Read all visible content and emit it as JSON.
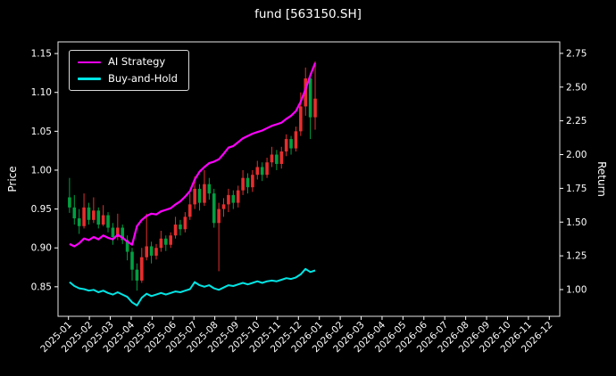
{
  "chart_data": {
    "type": "candlestick+line",
    "title": "fund [563150.SH]",
    "background": "#000000",
    "text_color": "#ffffff",
    "grid": false,
    "x_ticks": [
      "2025-01",
      "2025-02",
      "2025-03",
      "2025-04",
      "2025-05",
      "2025-06",
      "2025-07",
      "2025-08",
      "2025-09",
      "2025-10",
      "2025-11",
      "2025-12",
      "2026-01",
      "2026-02",
      "2026-03",
      "2026-04",
      "2026-05",
      "2026-06",
      "2026-07",
      "2026-08",
      "2026-09",
      "2026-10",
      "2026-11",
      "2026-12"
    ],
    "left_axis": {
      "label": "Price",
      "ticks": [
        0.85,
        0.9,
        0.95,
        1.0,
        1.05,
        1.1,
        1.15
      ],
      "lim": [
        0.812,
        1.165
      ]
    },
    "right_axis": {
      "label": "Return",
      "ticks": [
        1.0,
        1.25,
        1.5,
        1.75,
        2.0,
        2.25,
        2.5,
        2.75
      ],
      "lim": [
        0.802,
        2.835
      ]
    },
    "legend": [
      {
        "label": "AI Strategy",
        "color": "#ff00ff"
      },
      {
        "label": "Buy-and-Hold",
        "color": "#00e5e5"
      }
    ],
    "bars": {
      "interval": "weekly-approx",
      "span_months": 12,
      "up_color": "#e62e2e",
      "down_color": "#00a040",
      "ohlc": [
        [
          0.965,
          0.99,
          0.945,
          0.952
        ],
        [
          0.952,
          0.968,
          0.93,
          0.938
        ],
        [
          0.938,
          0.95,
          0.918,
          0.928
        ],
        [
          0.928,
          0.97,
          0.925,
          0.952
        ],
        [
          0.952,
          0.958,
          0.93,
          0.936
        ],
        [
          0.936,
          0.965,
          0.932,
          0.948
        ],
        [
          0.948,
          0.952,
          0.925,
          0.93
        ],
        [
          0.93,
          0.955,
          0.928,
          0.942
        ],
        [
          0.942,
          0.946,
          0.92,
          0.926
        ],
        [
          0.926,
          0.932,
          0.904,
          0.914
        ],
        [
          0.914,
          0.944,
          0.91,
          0.926
        ],
        [
          0.926,
          0.93,
          0.905,
          0.91
        ],
        [
          0.91,
          0.916,
          0.884,
          0.895
        ],
        [
          0.895,
          0.9,
          0.858,
          0.872
        ],
        [
          0.872,
          0.88,
          0.845,
          0.858
        ],
        [
          0.858,
          0.9,
          0.855,
          0.888
        ],
        [
          0.888,
          0.944,
          0.884,
          0.902
        ],
        [
          0.902,
          0.908,
          0.88,
          0.89
        ],
        [
          0.89,
          0.905,
          0.885,
          0.9
        ],
        [
          0.9,
          0.922,
          0.895,
          0.912
        ],
        [
          0.912,
          0.916,
          0.896,
          0.904
        ],
        [
          0.904,
          0.92,
          0.9,
          0.916
        ],
        [
          0.916,
          0.94,
          0.912,
          0.93
        ],
        [
          0.93,
          0.936,
          0.916,
          0.924
        ],
        [
          0.924,
          0.946,
          0.92,
          0.94
        ],
        [
          0.94,
          0.97,
          0.936,
          0.956
        ],
        [
          0.956,
          0.992,
          0.95,
          0.976
        ],
        [
          0.976,
          0.982,
          0.948,
          0.958
        ],
        [
          0.958,
          1.0,
          0.954,
          0.982
        ],
        [
          0.982,
          0.99,
          0.962,
          0.97
        ],
        [
          0.97,
          0.976,
          0.926,
          0.932
        ],
        [
          0.932,
          0.958,
          0.87,
          0.95
        ],
        [
          0.95,
          0.964,
          0.94,
          0.956
        ],
        [
          0.956,
          0.976,
          0.946,
          0.968
        ],
        [
          0.968,
          0.974,
          0.95,
          0.958
        ],
        [
          0.958,
          0.98,
          0.952,
          0.974
        ],
        [
          0.974,
          1.0,
          0.968,
          0.99
        ],
        [
          0.99,
          0.996,
          0.97,
          0.978
        ],
        [
          0.978,
          1.0,
          0.972,
          0.994
        ],
        [
          0.994,
          1.012,
          0.988,
          1.004
        ],
        [
          1.004,
          1.01,
          0.986,
          0.994
        ],
        [
          0.994,
          1.016,
          0.99,
          1.01
        ],
        [
          1.01,
          1.03,
          1.004,
          1.02
        ],
        [
          1.02,
          1.026,
          1.0,
          1.008
        ],
        [
          1.008,
          1.03,
          1.002,
          1.024
        ],
        [
          1.024,
          1.046,
          1.018,
          1.04
        ],
        [
          1.04,
          1.044,
          1.02,
          1.028
        ],
        [
          1.028,
          1.056,
          1.024,
          1.05
        ],
        [
          1.05,
          1.1,
          1.044,
          1.082
        ],
        [
          1.082,
          1.132,
          1.07,
          1.118
        ],
        [
          1.118,
          1.124,
          1.04,
          1.068
        ],
        [
          1.068,
          1.14,
          1.052,
          1.092
        ]
      ]
    },
    "series": [
      {
        "name": "AI Strategy",
        "color": "#ff00ff",
        "values": [
          0.905,
          0.902,
          0.906,
          0.912,
          0.91,
          0.914,
          0.911,
          0.916,
          0.913,
          0.911,
          0.917,
          0.913,
          0.908,
          0.904,
          0.928,
          0.936,
          0.941,
          0.944,
          0.943,
          0.947,
          0.949,
          0.951,
          0.956,
          0.96,
          0.966,
          0.973,
          0.988,
          0.998,
          1.004,
          1.009,
          1.011,
          1.014,
          1.021,
          1.029,
          1.031,
          1.036,
          1.041,
          1.044,
          1.047,
          1.049,
          1.051,
          1.054,
          1.057,
          1.059,
          1.061,
          1.066,
          1.07,
          1.076,
          1.088,
          1.104,
          1.122,
          1.138
        ]
      },
      {
        "name": "Buy-and-Hold",
        "color": "#00e5e5",
        "values": [
          0.856,
          0.851,
          0.848,
          0.847,
          0.845,
          0.846,
          0.843,
          0.845,
          0.842,
          0.84,
          0.843,
          0.84,
          0.837,
          0.83,
          0.826,
          0.836,
          0.841,
          0.838,
          0.84,
          0.842,
          0.84,
          0.842,
          0.844,
          0.843,
          0.845,
          0.847,
          0.856,
          0.852,
          0.85,
          0.852,
          0.848,
          0.846,
          0.849,
          0.852,
          0.851,
          0.853,
          0.855,
          0.853,
          0.855,
          0.857,
          0.855,
          0.857,
          0.858,
          0.857,
          0.859,
          0.861,
          0.86,
          0.862,
          0.866,
          0.873,
          0.869,
          0.871
        ]
      }
    ]
  }
}
